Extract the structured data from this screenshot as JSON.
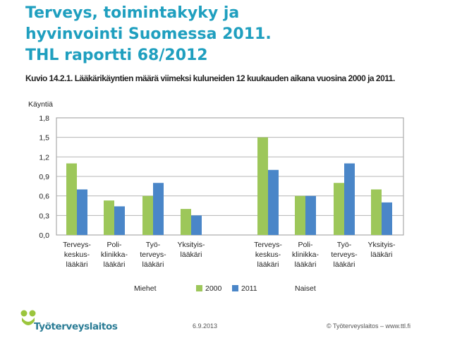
{
  "slide": {
    "title_lines": [
      "Terveys, toimintakyky ja",
      "hyvinvointi Suomessa 2011.",
      "THL raportti 68/2012"
    ],
    "figure_caption": "Kuvio 14.2.1. Lääkärikäyntien määrä viimeksi kuluneiden 12 kuukauden aikana vuosina 2000 ja 2011.",
    "footer_date": "6.9.2013",
    "footer_copyright": "© Työterveyslaitos   –   www.ttl.fi",
    "logo_text": "Työterveyslaitos"
  },
  "colors": {
    "title": "#1f9fbf",
    "series_2000": "#9dc75a",
    "series_2011": "#4a86c8",
    "logo_green": "#9bc53d",
    "logo_teal": "#2a7c95"
  },
  "chart_data": {
    "type": "bar",
    "ylabel": "Käyntiä",
    "ylim": [
      0,
      1.8
    ],
    "yticks": [
      "0,0",
      "0,3",
      "0,6",
      "0,9",
      "1,2",
      "1,5",
      "1,8"
    ],
    "ytick_values": [
      0,
      0.3,
      0.6,
      0.9,
      1.2,
      1.5,
      1.8
    ],
    "grid": true,
    "legend_position": "bottom",
    "groups": [
      {
        "name": "Miehet",
        "categories": [
          "Terveys-\nkeskus-\nlääkäri",
          "Poli-\nklinikka-\nlääkäri",
          "Työ-\nterveys-\nlääkäri",
          "Yksityis-\nlääkäri"
        ],
        "series": [
          {
            "name": "2000",
            "values": [
              1.1,
              0.53,
              0.6,
              0.4
            ]
          },
          {
            "name": "2011",
            "values": [
              0.7,
              0.44,
              0.8,
              0.3
            ]
          }
        ]
      },
      {
        "name": "Naiset",
        "categories": [
          "Terveys-\nkeskus-\nlääkäri",
          "Poli-\nklinikka-\nlääkäri",
          "Työ-\nterveys-\nlääkäri",
          "Yksityis-\nlääkäri"
        ],
        "series": [
          {
            "name": "2000",
            "values": [
              1.5,
              0.6,
              0.8,
              0.7
            ]
          },
          {
            "name": "2011",
            "values": [
              1.0,
              0.6,
              1.1,
              0.5
            ]
          }
        ]
      }
    ]
  }
}
